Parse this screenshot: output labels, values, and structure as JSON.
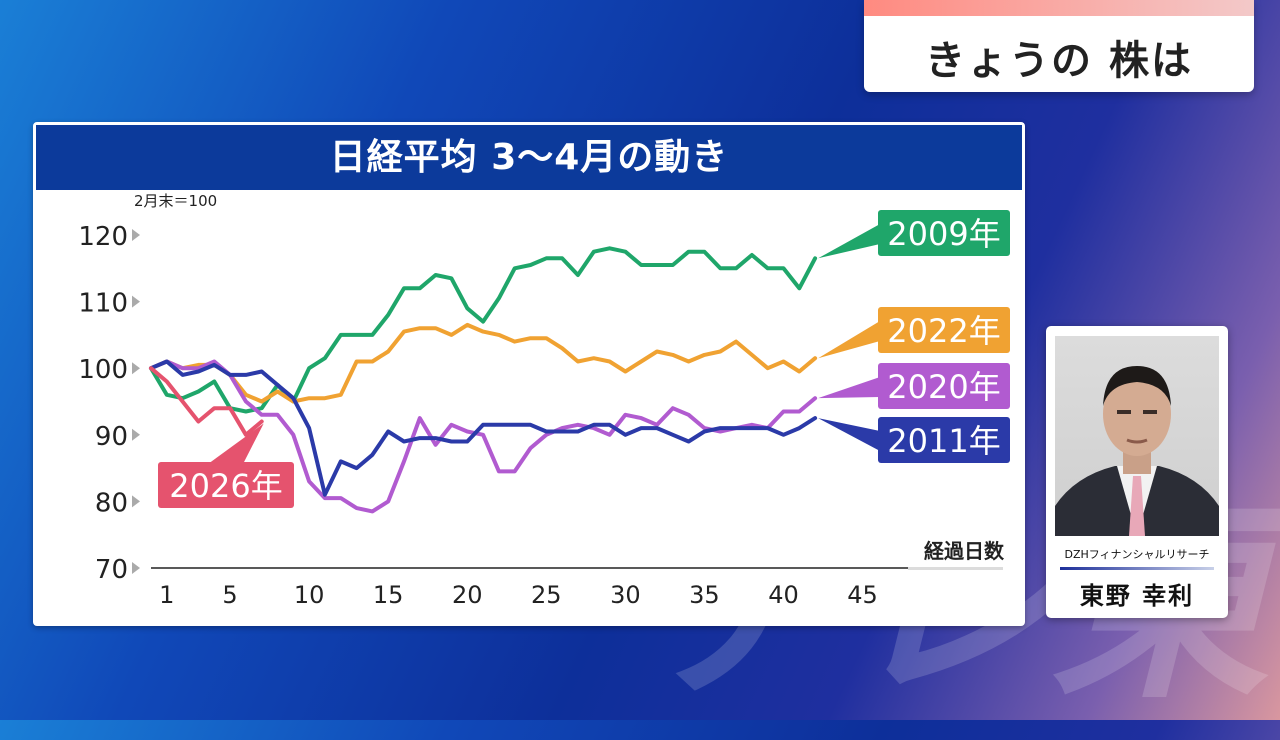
{
  "program": {
    "title": "きょうの 株は",
    "watermark": "テレ東"
  },
  "chart_panel": {
    "header": "日経平均 3～4月の動き"
  },
  "speaker": {
    "company": "DZHフィナンシャルリサーチ",
    "name": "東野 幸利"
  },
  "chart_data": {
    "type": "line",
    "title": "日経平均 3～4月の動き",
    "ylabel": "2月末＝100",
    "xlabel": "経過日数",
    "ylim": [
      70,
      120
    ],
    "xlim": [
      0,
      48
    ],
    "yticks": [
      70,
      80,
      90,
      100,
      110,
      120
    ],
    "xticks": [
      1,
      5,
      10,
      15,
      20,
      25,
      30,
      35,
      40,
      45
    ],
    "series": [
      {
        "name": "2009年",
        "color": "#1fa66a",
        "x": [
          0,
          1,
          2,
          3,
          4,
          5,
          6,
          7,
          8,
          9,
          10,
          11,
          12,
          13,
          14,
          15,
          16,
          17,
          18,
          19,
          20,
          21,
          22,
          23,
          24,
          25,
          26,
          27,
          28,
          29,
          30,
          31,
          32,
          33,
          34,
          35,
          36,
          37,
          38,
          39,
          40,
          41,
          42
        ],
        "values": [
          100,
          96,
          95.5,
          96.5,
          98,
          94,
          93.5,
          94,
          97.5,
          95,
          100,
          101.5,
          105,
          105,
          105,
          108,
          112,
          112,
          114,
          113.5,
          109,
          107,
          110.5,
          115,
          115.5,
          116.5,
          116.5,
          114,
          117.5,
          118,
          117.5,
          115.5,
          115.5,
          115.5,
          117.5,
          117.5,
          115,
          115,
          117,
          115,
          115,
          112,
          116.5
        ]
      },
      {
        "name": "2022年",
        "color": "#f0a232",
        "x": [
          0,
          1,
          2,
          3,
          4,
          5,
          6,
          7,
          8,
          9,
          10,
          11,
          12,
          13,
          14,
          15,
          16,
          17,
          18,
          19,
          20,
          21,
          22,
          23,
          24,
          25,
          26,
          27,
          28,
          29,
          30,
          31,
          32,
          33,
          34,
          35,
          36,
          37,
          38,
          39,
          40,
          41,
          42
        ],
        "values": [
          100,
          101,
          100,
          100.5,
          100.5,
          99,
          96,
          95,
          96.5,
          95,
          95.5,
          95.5,
          96,
          101,
          101,
          102.5,
          105.5,
          106,
          106,
          105,
          106.5,
          105.5,
          105,
          104,
          104.5,
          104.5,
          103,
          101,
          101.5,
          101,
          99.5,
          101,
          102.5,
          102,
          101,
          102,
          102.5,
          104,
          102,
          100,
          101,
          99.5,
          101.5
        ]
      },
      {
        "name": "2020年",
        "color": "#b15bd0",
        "x": [
          0,
          1,
          2,
          3,
          4,
          5,
          6,
          7,
          8,
          9,
          10,
          11,
          12,
          13,
          14,
          15,
          16,
          17,
          18,
          19,
          20,
          21,
          22,
          23,
          24,
          25,
          26,
          27,
          28,
          29,
          30,
          31,
          32,
          33,
          34,
          35,
          36,
          37,
          38,
          39,
          40,
          41,
          42
        ],
        "values": [
          100,
          101,
          100,
          100,
          101,
          99,
          95,
          93,
          93,
          90,
          83,
          80.5,
          80.5,
          79,
          78.5,
          80,
          86,
          92.5,
          88.5,
          91.5,
          90.5,
          90,
          84.5,
          84.5,
          88,
          90,
          91,
          91.5,
          91,
          90,
          93,
          92.5,
          91.5,
          94,
          93,
          91,
          90.5,
          91,
          91.5,
          91,
          93.5,
          93.5,
          95.5
        ]
      },
      {
        "name": "2011年",
        "color": "#2b3aa8",
        "x": [
          0,
          1,
          2,
          3,
          4,
          5,
          6,
          7,
          8,
          9,
          10,
          11,
          12,
          13,
          14,
          15,
          16,
          17,
          18,
          19,
          20,
          21,
          22,
          23,
          24,
          25,
          26,
          27,
          28,
          29,
          30,
          31,
          32,
          33,
          34,
          35,
          36,
          37,
          38,
          39,
          40,
          41,
          42
        ],
        "values": [
          100,
          101,
          99,
          99.5,
          100.5,
          99,
          99,
          99.5,
          97.5,
          95.5,
          91,
          81,
          86,
          85,
          87,
          90.5,
          89,
          89.5,
          89.5,
          89,
          89,
          91.5,
          91.5,
          91.5,
          91.5,
          90.5,
          90.5,
          90.5,
          91.5,
          91.5,
          90,
          91,
          91,
          90,
          89,
          90.5,
          91,
          91,
          91,
          91,
          90,
          91,
          92.5
        ]
      },
      {
        "name": "2026年",
        "color": "#e5536e",
        "x": [
          0,
          1,
          2,
          3,
          4,
          5,
          6,
          7
        ],
        "values": [
          100,
          98,
          95,
          92,
          94,
          94,
          90,
          92
        ]
      }
    ]
  }
}
